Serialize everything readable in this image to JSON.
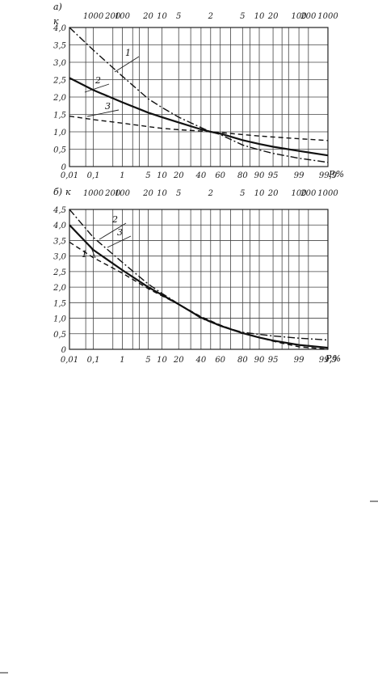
{
  "chart_data": [
    {
      "type": "line",
      "panel_label": "а)",
      "y_axis_label": "к",
      "x_unit_label": "P,%",
      "x_scale": "probability",
      "ylim": [
        0,
        4
      ],
      "yticks": [
        "0",
        "0,5",
        "1,0",
        "1,5",
        "2,0",
        "2,5",
        "3,0",
        "3,5",
        "4,0"
      ],
      "x_ticks": [
        "0,01",
        "0,1",
        "1",
        "5",
        "10",
        "20",
        "40",
        "60",
        "80",
        "90",
        "95",
        "99",
        "99,9"
      ],
      "top_scale": [
        "1000",
        "200",
        "100",
        "20",
        "10",
        "5",
        "2",
        "5",
        "10",
        "20",
        "100",
        "200",
        "1000"
      ],
      "grid": true,
      "series": [
        {
          "name": "1",
          "style": "dash-dot",
          "x": [
            0.01,
            0.1,
            1,
            5,
            10,
            20,
            40,
            50,
            60,
            80,
            90,
            95,
            99,
            99.9
          ],
          "y": [
            4.0,
            3.35,
            2.6,
            1.95,
            1.7,
            1.42,
            1.12,
            1.0,
            0.92,
            0.62,
            0.48,
            0.38,
            0.24,
            0.12
          ]
        },
        {
          "name": "2",
          "style": "solid",
          "x": [
            0.01,
            0.1,
            1,
            5,
            10,
            20,
            40,
            50,
            60,
            80,
            90,
            95,
            99,
            99.9
          ],
          "y": [
            2.55,
            2.2,
            1.85,
            1.55,
            1.42,
            1.27,
            1.07,
            1.0,
            0.95,
            0.76,
            0.65,
            0.57,
            0.45,
            0.32
          ]
        },
        {
          "name": "3",
          "style": "dashed",
          "x": [
            0.01,
            0.1,
            1,
            5,
            10,
            20,
            40,
            50,
            60,
            80,
            90,
            95,
            99,
            99.9
          ],
          "y": [
            1.45,
            1.35,
            1.25,
            1.15,
            1.1,
            1.06,
            1.02,
            1.0,
            0.98,
            0.92,
            0.88,
            0.85,
            0.8,
            0.75
          ]
        }
      ]
    },
    {
      "type": "line",
      "panel_label": "б)",
      "y_axis_label": "к",
      "x_unit_label": "P,%",
      "x_scale": "probability",
      "ylim": [
        0,
        4.5
      ],
      "yticks": [
        "0",
        "0,5",
        "1,0",
        "1,5",
        "2,0",
        "2,5",
        "3,0",
        "3,5",
        "4,0",
        "4,5"
      ],
      "x_ticks": [
        "0,01",
        "0,1",
        "1",
        "5",
        "10",
        "20",
        "40",
        "60",
        "80",
        "90",
        "95",
        "99",
        "99,9"
      ],
      "top_scale": [
        "1000",
        "200",
        "100",
        "20",
        "10",
        "5",
        "2",
        "5",
        "10",
        "20",
        "100",
        "200",
        "1000"
      ],
      "grid": true,
      "series": [
        {
          "name": "1",
          "style": "dashed",
          "x": [
            0.01,
            0.1,
            1,
            5,
            10,
            20,
            40,
            60,
            80,
            90,
            95,
            99,
            99.9
          ],
          "y": [
            3.45,
            2.95,
            2.45,
            1.95,
            1.72,
            1.45,
            1.05,
            0.78,
            0.52,
            0.38,
            0.26,
            0.08,
            0.0
          ]
        },
        {
          "name": "2",
          "style": "solid",
          "x": [
            0.01,
            0.1,
            1,
            5,
            10,
            20,
            40,
            60,
            80,
            90,
            95,
            99,
            99.9
          ],
          "y": [
            4.0,
            3.2,
            2.55,
            2.0,
            1.75,
            1.45,
            1.02,
            0.76,
            0.52,
            0.38,
            0.28,
            0.14,
            0.05
          ]
        },
        {
          "name": "3",
          "style": "dash-dot",
          "x": [
            0.01,
            0.1,
            1,
            5,
            10,
            20,
            40,
            60,
            80,
            90,
            95,
            99,
            99.9
          ],
          "y": [
            4.5,
            3.6,
            2.8,
            2.1,
            1.8,
            1.46,
            1.0,
            0.75,
            0.55,
            0.48,
            0.43,
            0.36,
            0.3
          ]
        }
      ]
    }
  ]
}
